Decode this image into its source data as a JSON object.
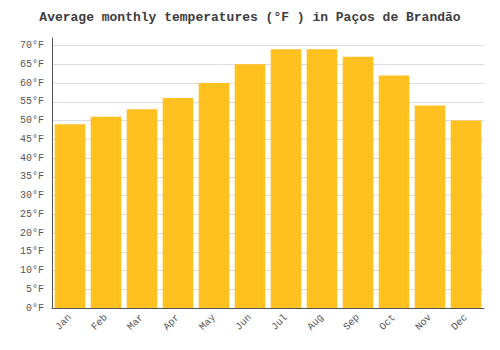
{
  "chart_data": {
    "type": "bar",
    "title": "Average monthly temperatures (°F ) in Paços de Brandão",
    "categories": [
      "Jan",
      "Feb",
      "Mar",
      "Apr",
      "May",
      "Jun",
      "Jul",
      "Aug",
      "Sep",
      "Oct",
      "Nov",
      "Dec"
    ],
    "values": [
      49.0,
      51.0,
      53.0,
      56.0,
      60.0,
      65.0,
      69.0,
      69.0,
      67.0,
      62.0,
      54.0,
      50.0
    ],
    "color": "#FFC020",
    "ylim": [
      0,
      72
    ],
    "yticks": [
      {
        "value": 0,
        "label": "0°F"
      },
      {
        "value": 5,
        "label": "5°F"
      },
      {
        "value": 10,
        "label": "10°F"
      },
      {
        "value": 15,
        "label": "15°F"
      },
      {
        "value": 20,
        "label": "20°F"
      },
      {
        "value": 25,
        "label": "25°F"
      },
      {
        "value": 30,
        "label": "30°F"
      },
      {
        "value": 35,
        "label": "35°F"
      },
      {
        "value": 40,
        "label": "40°F"
      },
      {
        "value": 45,
        "label": "45°F"
      },
      {
        "value": 50,
        "label": "50°F"
      },
      {
        "value": 55,
        "label": "55°F"
      },
      {
        "value": 60,
        "label": "60°F"
      },
      {
        "value": 65,
        "label": "65°F"
      },
      {
        "value": 70,
        "label": "70°F"
      }
    ],
    "grid": true
  }
}
